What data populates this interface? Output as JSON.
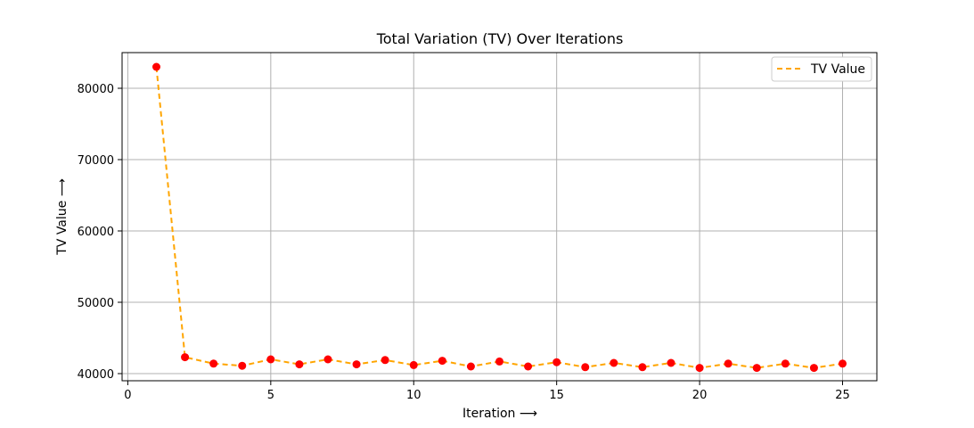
{
  "chart_data": {
    "type": "line",
    "title": "Total Variation (TV) Over Iterations",
    "xlabel": "Iteration ⟶",
    "ylabel": "TV Value ⟶",
    "xlim": [
      -0.2,
      26.2
    ],
    "ylim": [
      39000,
      85000
    ],
    "xticks": [
      0,
      5,
      10,
      15,
      20,
      25
    ],
    "yticks": [
      40000,
      50000,
      60000,
      70000,
      80000
    ],
    "grid": true,
    "legend_position": "top-right",
    "x": [
      1,
      2,
      3,
      4,
      5,
      6,
      7,
      8,
      9,
      10,
      11,
      12,
      13,
      14,
      15,
      16,
      17,
      18,
      19,
      20,
      21,
      22,
      23,
      24,
      25
    ],
    "series": [
      {
        "name": "TV Value",
        "line_color": "#FFA500",
        "line_style": "dashed",
        "marker_color": "#FF0000",
        "values": [
          83000,
          42300,
          41400,
          41100,
          42000,
          41300,
          42000,
          41300,
          41900,
          41200,
          41800,
          41000,
          41700,
          41000,
          41600,
          40900,
          41500,
          40900,
          41500,
          40800,
          41400,
          40800,
          41400,
          40800,
          41400
        ]
      }
    ]
  }
}
